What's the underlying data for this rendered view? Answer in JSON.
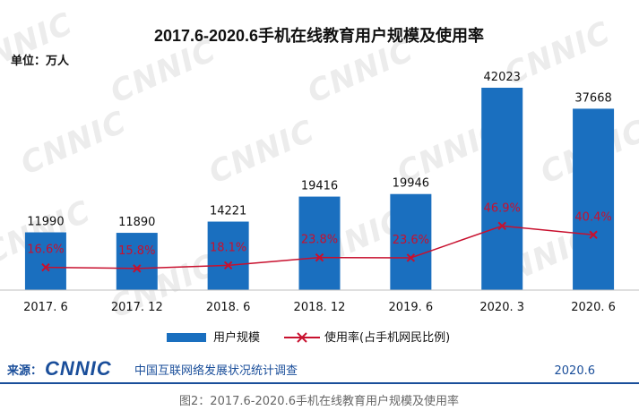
{
  "header": {
    "title": "2017.6-2020.6手机在线教育用户规模及使用率",
    "unit": "单位：万人"
  },
  "watermark": "CNNIC",
  "chart_data": {
    "type": "bar",
    "categories": [
      "2017. 6",
      "2017. 12",
      "2018. 6",
      "2018. 12",
      "2019. 6",
      "2020. 3",
      "2020. 6"
    ],
    "series": [
      {
        "name": "用户规模",
        "type": "bar",
        "color": "#1a6fbf",
        "values": [
          11990,
          11890,
          14221,
          19416,
          19946,
          42023,
          37668
        ]
      },
      {
        "name": "使用率(占手机网民比例)",
        "type": "line",
        "color": "#c8102e",
        "values": [
          16.6,
          15.8,
          18.1,
          23.8,
          23.6,
          46.9,
          40.4
        ],
        "labels": [
          "16.6%",
          "15.8%",
          "18.1%",
          "23.8%",
          "23.6%",
          "46.9%",
          "40.4%"
        ]
      }
    ],
    "grid": false,
    "legend_position": "bottom"
  },
  "footer": {
    "source_prefix": "来源：",
    "logo_text": "CNNIC",
    "org_name": "中国互联网络发展状况统计调查",
    "date": "2020.6",
    "color": "#1a4e9a"
  },
  "caption": "图2：2017.6-2020.6手机在线教育用户规模及使用率"
}
